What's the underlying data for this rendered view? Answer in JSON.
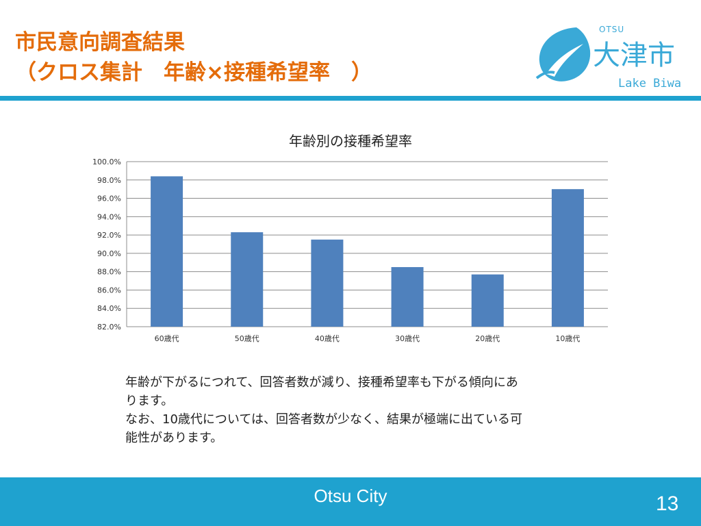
{
  "slide": {
    "title_line1": "市民意向調査結果",
    "title_line2": "（クロス集計　年齢×接種希望率　）",
    "description": [
      "年齢が下がるにつれて、回答者数が減り、接種希望率も下がる傾向にあ",
      "ります。",
      "なお、10歳代については、回答者数が少なく、結果が極端に出ている可",
      "能性があります。"
    ],
    "footer_text": "Otsu City",
    "page_number": "13"
  },
  "logo": {
    "otsu": "OTSU",
    "kanji": "大津市",
    "lake": "Lake Biwa"
  },
  "colors": {
    "title": "#e46c0a",
    "accent": "#1fa2cf",
    "bar": "#4f81bd",
    "grid": "#8c8c8c"
  },
  "chart_data": {
    "type": "bar",
    "title": "年齢別の接種希望率",
    "categories": [
      "60歳代",
      "50歳代",
      "40歳代",
      "30歳代",
      "20歳代",
      "10歳代"
    ],
    "values": [
      98.4,
      92.3,
      91.5,
      88.5,
      87.7,
      97.0
    ],
    "ylim": [
      82.0,
      100.0
    ],
    "yticks": [
      "82.0%",
      "84.0%",
      "86.0%",
      "88.0%",
      "90.0%",
      "92.0%",
      "94.0%",
      "96.0%",
      "98.0%",
      "100.0%"
    ],
    "ytick_values": [
      82,
      84,
      86,
      88,
      90,
      92,
      94,
      96,
      98,
      100
    ],
    "grid": true,
    "legend": "none"
  }
}
